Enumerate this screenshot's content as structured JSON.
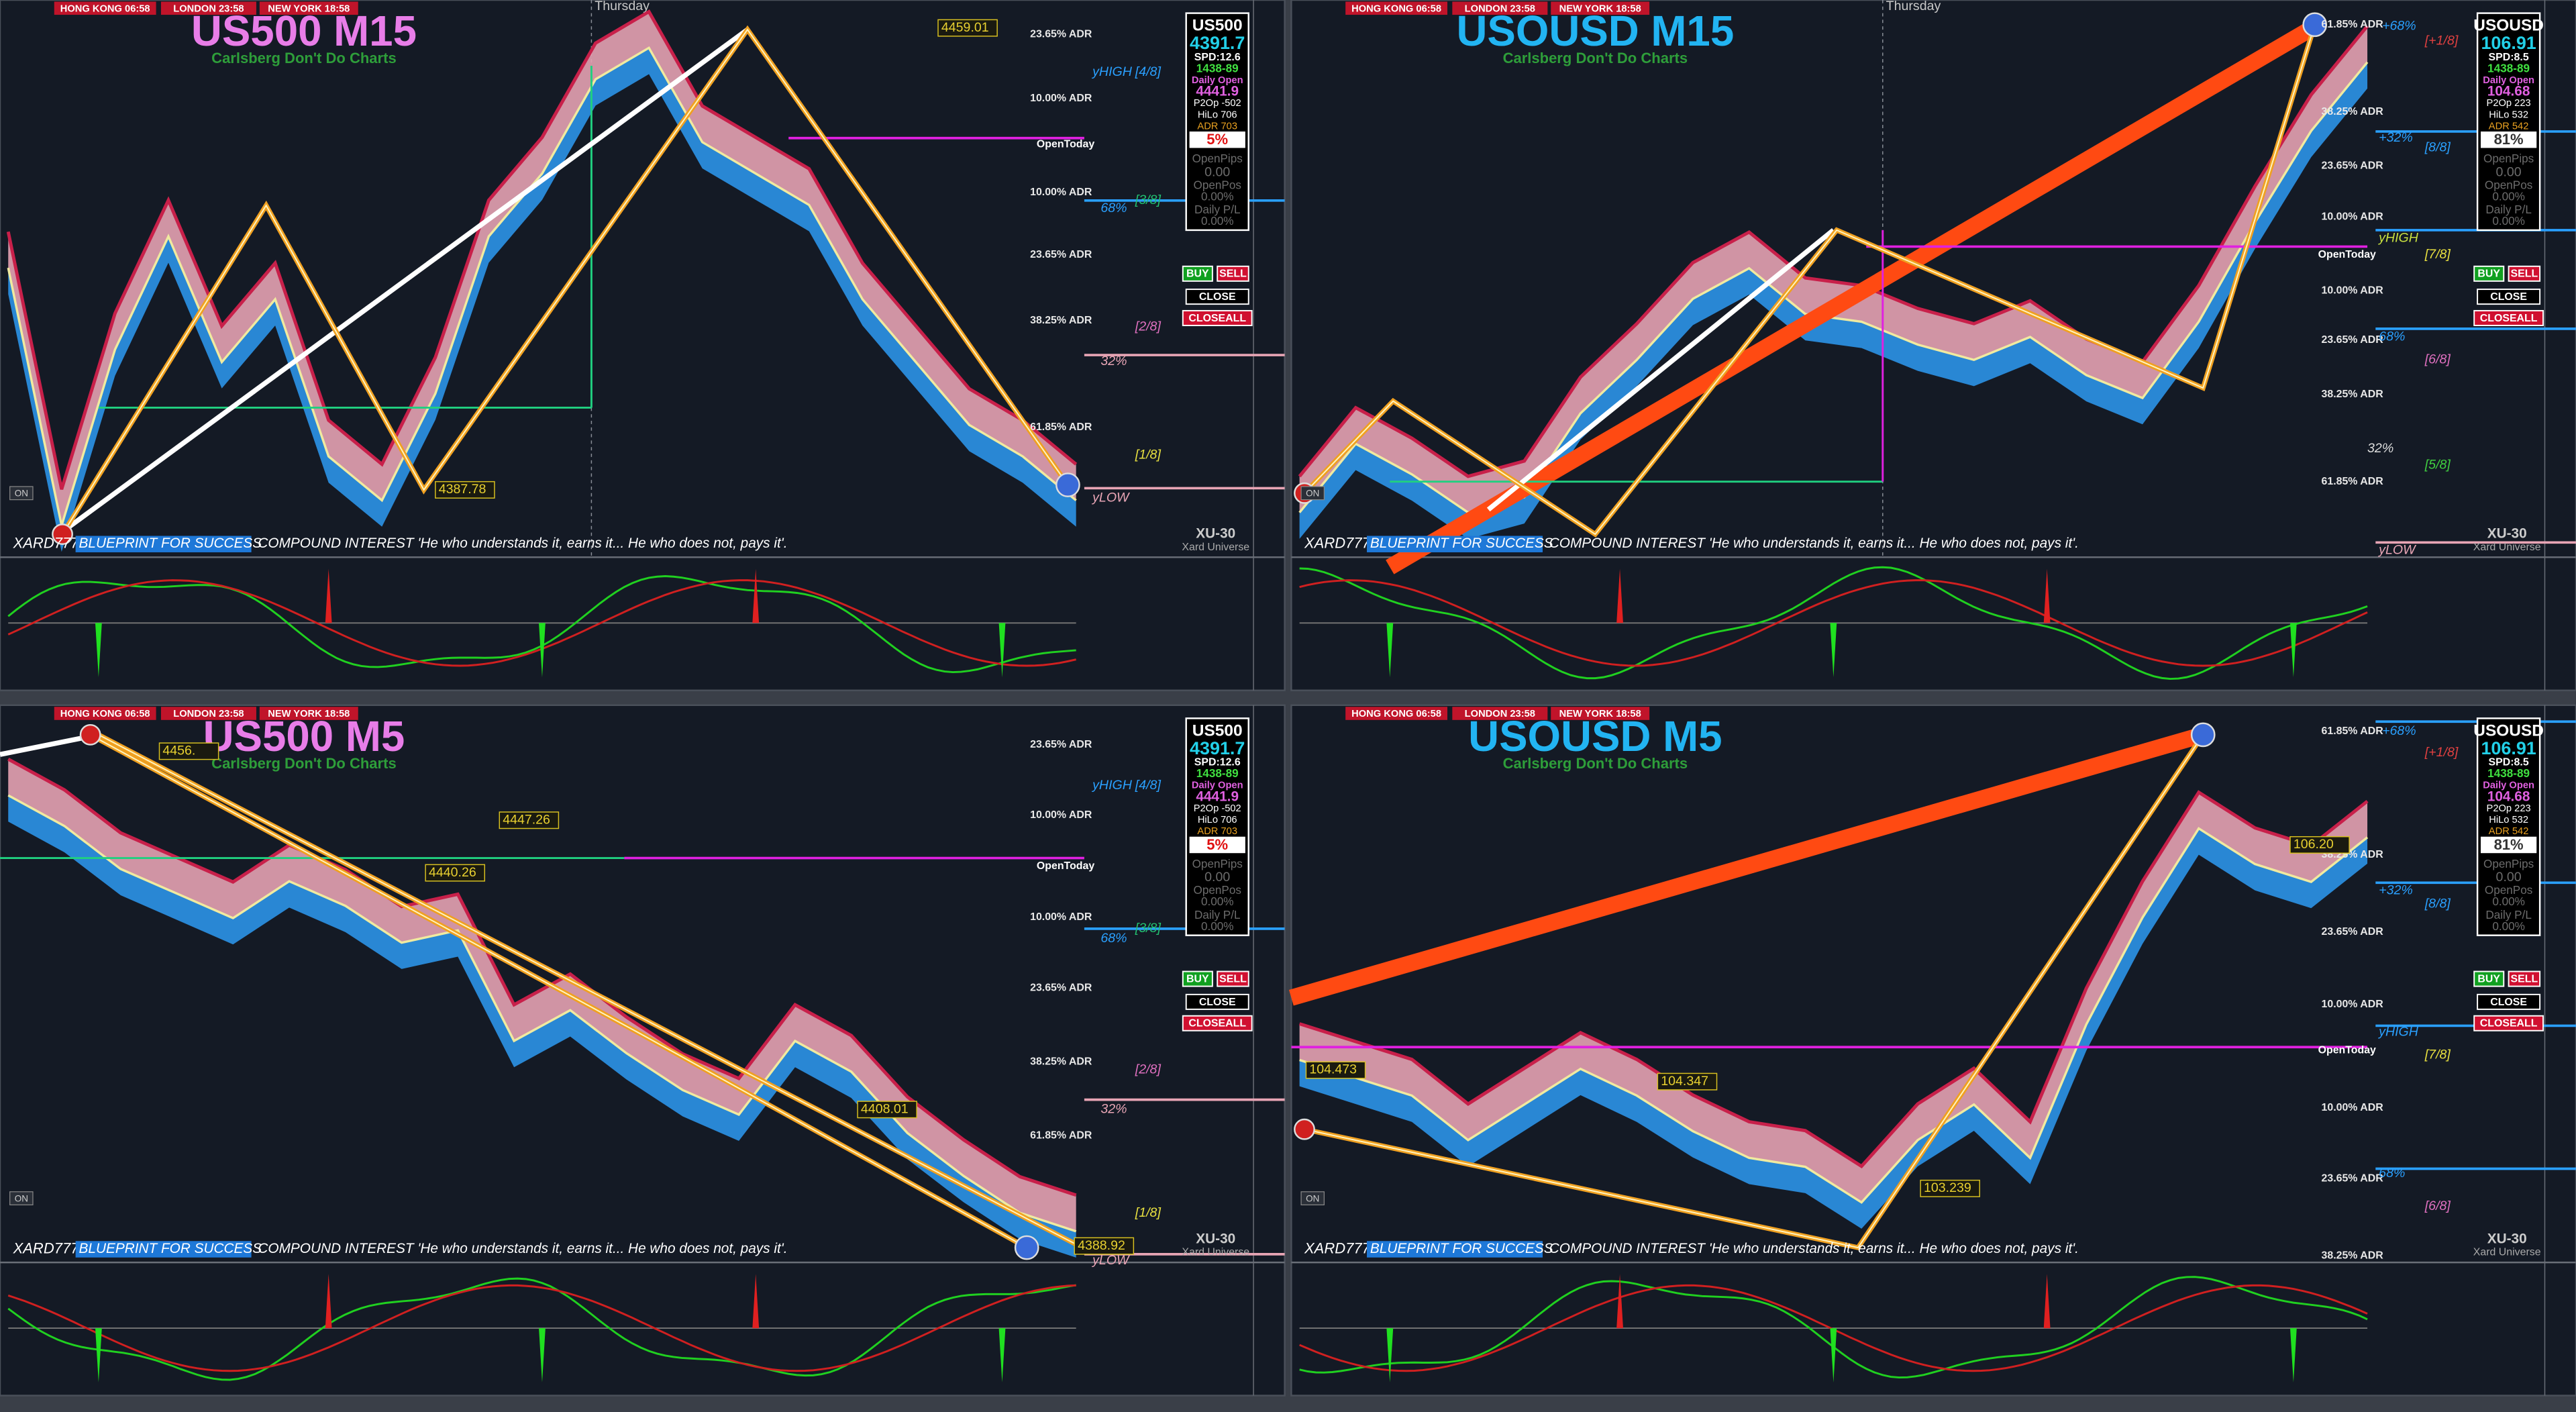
{
  "sessions": [
    "HONG KONG 06:58",
    "LONDON 23:58",
    "NEW YORK 18:58"
  ],
  "buttons": {
    "buy": "BUY",
    "sell": "SELL",
    "close": "CLOSE",
    "closeall": "CLOSEALL",
    "on": "ON"
  },
  "account": {
    "open_pips": "OpenPips",
    "open_pips_value": "0.00",
    "open_pos": "OpenPos",
    "open_pos_value": "0.00%",
    "daily_pl": "Daily P/L",
    "daily_pl_value": "0.00%",
    "daily_open": "Daily Open"
  },
  "footer": {
    "brand": "XARD777",
    "tagline": "BLUEPRINT FOR SUCCESS",
    "quote": "COMPOUND INTEREST 'He who understands it, earns it... He who does not, pays it'.",
    "badge": "XU-30",
    "universe": "Xard Universe"
  },
  "common": {
    "subtitle": "Carlsberg Don't Do Charts",
    "open_today": "OpenToday",
    "day": "Thursday"
  },
  "panels": [
    {
      "title": "US500 M15",
      "symbol": "US500",
      "price": "4391.7",
      "spread": "SPD:12.6",
      "timer": "1438-89",
      "daily_open": "4441.9",
      "p2op": "P2Op -502",
      "hilo": "HiLo 706",
      "adr": "ADR 703",
      "adr_pct": "5%",
      "adr_labels": [
        "23.65% ADR",
        "10.00% ADR",
        "10.00% ADR",
        "23.65% ADR",
        "38.25% ADR",
        "61.85% ADR"
      ],
      "fib_labels": [
        "yHIGH",
        "[4/8]",
        "[3/8]",
        "68%",
        "[2/8]",
        "32%",
        "[1/8]",
        "yLOW"
      ],
      "tags": [
        "4459.01",
        "4387.78"
      ],
      "price_series": {
        "ylim": [
          4380,
          4465
        ],
        "values": [
          4425,
          4384,
          4412,
          4430,
          4410,
          4420,
          4395,
          4388,
          4405,
          4430,
          4440,
          4455,
          4460,
          4445,
          4440,
          4435,
          4420,
          4410,
          4400,
          4395,
          4388
        ]
      }
    },
    {
      "title": "USOUSD M15",
      "symbol": "USOUSD",
      "price": "106.91",
      "spread": "SPD:8.5",
      "timer": "1438-89",
      "daily_open": "104.68",
      "p2op": "P2Op 223",
      "hilo": "HiLo 532",
      "adr": "ADR 542",
      "adr_pct": "81%",
      "adr_labels": [
        "61.85% ADR",
        "38.25% ADR",
        "23.65% ADR",
        "10.00% ADR",
        "10.00% ADR",
        "23.65% ADR",
        "38.25% ADR",
        "61.85% ADR"
      ],
      "fib_labels": [
        "+68%",
        "[+1/8]",
        "+32%",
        "[8/8]",
        "yHIGH",
        "[7/8]",
        "68%",
        "[6/8]",
        "32%",
        "[5/8]",
        "yLOW"
      ],
      "tags": [],
      "price_series": {
        "ylim": [
          100.5,
          107.5
        ],
        "values": [
          101.0,
          101.9,
          101.5,
          101.0,
          101.2,
          102.3,
          103.0,
          103.8,
          104.2,
          103.6,
          103.5,
          103.2,
          103.0,
          103.3,
          102.8,
          102.5,
          103.5,
          104.8,
          106.0,
          106.9
        ]
      }
    },
    {
      "title": "US500 M5",
      "symbol": "US500",
      "price": "4391.7",
      "spread": "SPD:12.6",
      "timer": "1438-89",
      "daily_open": "4441.9",
      "p2op": "P2Op -502",
      "hilo": "HiLo 706",
      "adr": "ADR 703",
      "adr_pct": "5%",
      "adr_labels": [
        "23.65% ADR",
        "10.00% ADR",
        "10.00% ADR",
        "23.65% ADR",
        "38.25% ADR",
        "61.85% ADR"
      ],
      "fib_labels": [
        "yHIGH",
        "[4/8]",
        "[3/8]",
        "68%",
        "[2/8]",
        "32%",
        "[1/8]",
        "yLOW"
      ],
      "tags": [
        "4456.",
        "4447.26",
        "4440.26",
        "4408.01",
        "4388.92"
      ],
      "price_series": {
        "ylim": [
          4385,
          4472
        ],
        "values": [
          4460,
          4455,
          4448,
          4444,
          4440,
          4446,
          4442,
          4436,
          4438,
          4420,
          4425,
          4418,
          4412,
          4408,
          4420,
          4415,
          4405,
          4398,
          4392,
          4389
        ]
      }
    },
    {
      "title": "USOUSD M5",
      "symbol": "USOUSD",
      "price": "106.91",
      "spread": "SPD:8.5",
      "timer": "1438-89",
      "daily_open": "104.68",
      "p2op": "P2Op 223",
      "hilo": "HiLo 532",
      "adr": "ADR 542",
      "adr_pct": "81%",
      "adr_labels": [
        "61.85% ADR",
        "38.25% ADR",
        "23.65% ADR",
        "10.00% ADR",
        "10.00% ADR",
        "23.65% ADR",
        "38.25% ADR"
      ],
      "fib_labels": [
        "+68%",
        "[+1/8]",
        "+32%",
        "[8/8]",
        "yHIGH",
        "[7/8]",
        "68%",
        "[6/8]"
      ],
      "tags": [
        "104.473",
        "104.347",
        "106.20",
        "103.239"
      ],
      "price_series": {
        "ylim": [
          102.2,
          108.2
        ],
        "values": [
          104.4,
          104.2,
          104.0,
          103.5,
          103.9,
          104.3,
          104.0,
          103.6,
          103.3,
          103.2,
          102.8,
          103.5,
          103.9,
          103.3,
          104.8,
          106.0,
          107.0,
          106.6,
          106.4,
          106.9
        ]
      }
    }
  ]
}
